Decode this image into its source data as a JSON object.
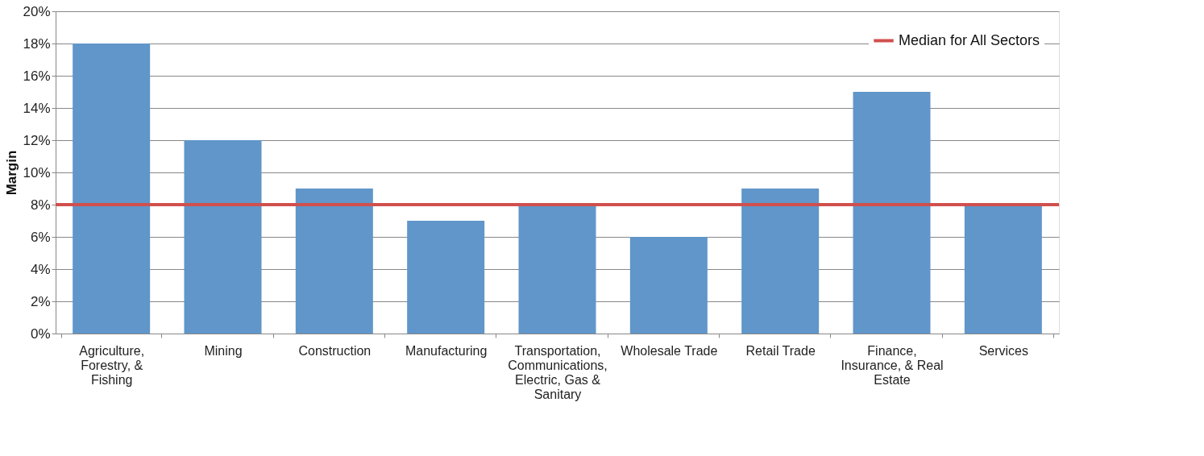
{
  "chart_data": {
    "type": "bar",
    "ylabel": "Margin",
    "categories": [
      "Agriculture, Forestry, & Fishing",
      "Mining",
      "Construction",
      "Manufacturing",
      "Transportation, Communications, Electric, Gas & Sanitary",
      "Wholesale Trade",
      "Retail Trade",
      "Finance, Insurance, & Real Estate",
      "Services"
    ],
    "values": [
      18,
      12,
      9,
      7,
      8,
      6,
      9,
      15,
      8
    ],
    "color": "#6096c9",
    "ylim": [
      0,
      20
    ],
    "yticks": [
      {
        "value": 0,
        "label": "0%"
      },
      {
        "value": 2,
        "label": "2%"
      },
      {
        "value": 4,
        "label": "4%"
      },
      {
        "value": 6,
        "label": "6%"
      },
      {
        "value": 8,
        "label": "8%"
      },
      {
        "value": 10,
        "label": "10%"
      },
      {
        "value": 12,
        "label": "12%"
      },
      {
        "value": 14,
        "label": "14%"
      },
      {
        "value": 16,
        "label": "16%"
      },
      {
        "value": 18,
        "label": "18%"
      },
      {
        "value": 20,
        "label": "20%"
      }
    ],
    "ref_lines": [
      {
        "axis": "y",
        "value": 8,
        "label": "Median for All Sectors",
        "color": "#d0504d"
      }
    ],
    "grid": "y",
    "legend": "top right"
  }
}
